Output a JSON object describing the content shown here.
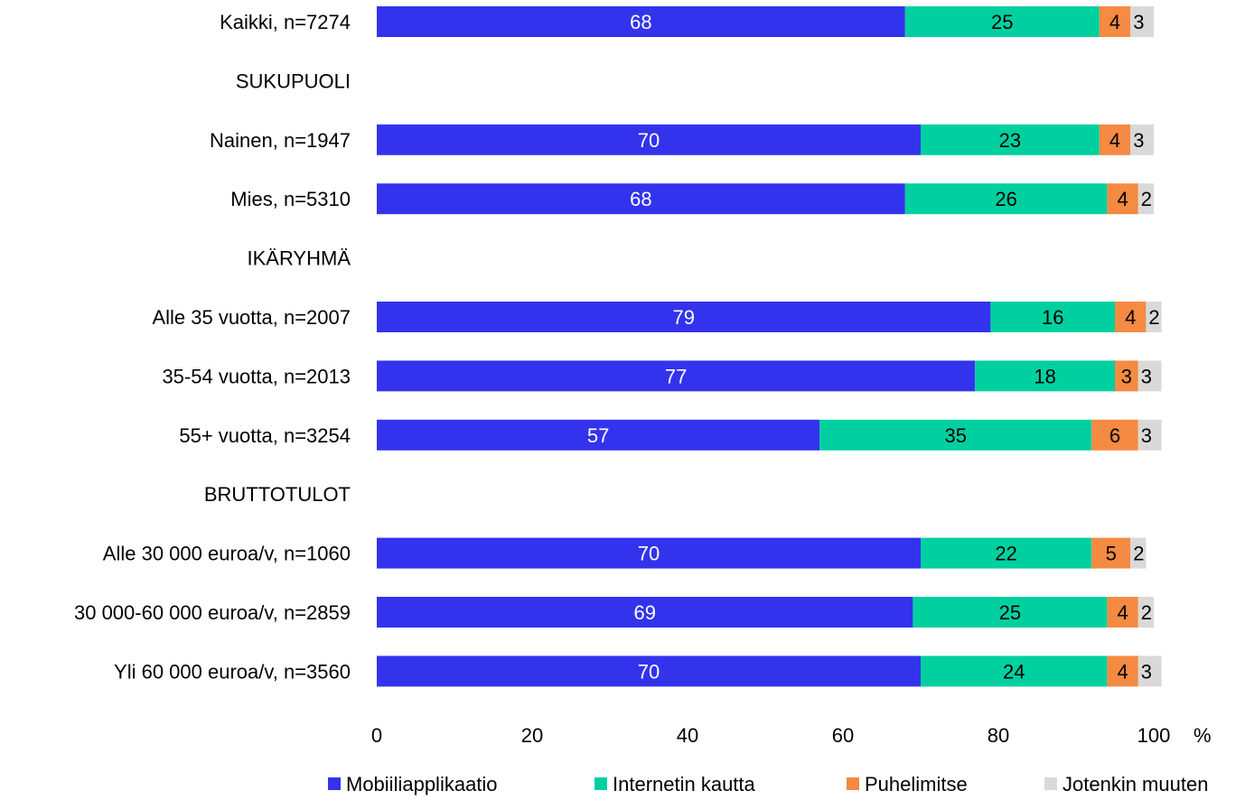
{
  "chart_data": {
    "type": "bar",
    "orientation": "horizontal",
    "stacked": true,
    "categories": [
      "Kaikki, n=7274",
      "SUKUPUOLI",
      "Nainen, n=1947",
      "Mies, n=5310",
      "IKÄRYHMÄ",
      "Alle 35 vuotta, n=2007",
      "35-54 vuotta, n=2013",
      "55+ vuotta, n=3254",
      "BRUTTOTULOT",
      "Alle 30 000 euroa/v, n=1060",
      "30 000-60 000 euroa/v, n=2859",
      "Yli 60 000 euroa/v, n=3560"
    ],
    "series": [
      {
        "name": "Mobiiliapplikaatio",
        "color": "#3333ee",
        "label_color": "#ffffff",
        "values": [
          68,
          null,
          70,
          68,
          null,
          79,
          77,
          57,
          null,
          70,
          69,
          70
        ]
      },
      {
        "name": "Internetin kautta",
        "color": "#00d0a0",
        "label_color": "#000000",
        "values": [
          25,
          null,
          23,
          26,
          null,
          16,
          18,
          35,
          null,
          22,
          25,
          24
        ]
      },
      {
        "name": "Puhelimitse",
        "color": "#f58a42",
        "label_color": "#000000",
        "values": [
          4,
          null,
          4,
          4,
          null,
          4,
          3,
          6,
          null,
          5,
          4,
          4
        ]
      },
      {
        "name": "Jotenkin muuten",
        "color": "#d9d9d9",
        "label_color": "#000000",
        "values": [
          3,
          null,
          3,
          2,
          null,
          2,
          3,
          3,
          null,
          2,
          2,
          3
        ]
      }
    ],
    "x_ticks": [
      "0",
      "20",
      "40",
      "60",
      "80",
      "100"
    ],
    "x_unit": "%",
    "xlim": [
      0,
      100
    ],
    "grid": false,
    "legend_position": "bottom"
  }
}
